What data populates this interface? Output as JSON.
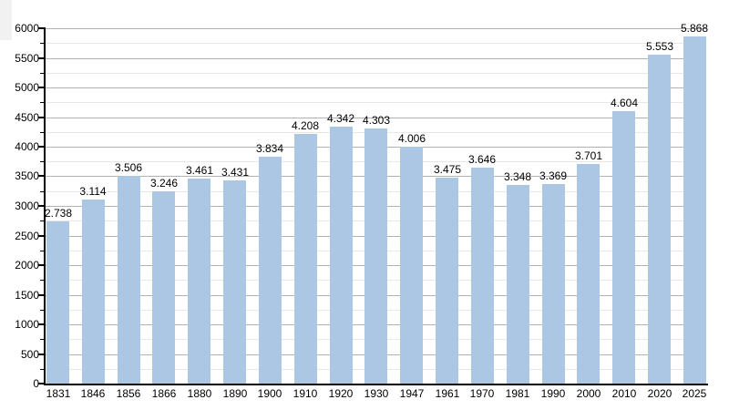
{
  "chart_data": {
    "type": "bar",
    "title": "",
    "xlabel": "",
    "ylabel": "",
    "categories": [
      "1831",
      "1846",
      "1856",
      "1866",
      "1880",
      "1890",
      "1900",
      "1910",
      "1920",
      "1930",
      "1947",
      "1961",
      "1970",
      "1981",
      "1990",
      "2000",
      "2010",
      "2020",
      "2025"
    ],
    "values": [
      2738,
      3114,
      3506,
      3246,
      3461,
      3431,
      3834,
      4208,
      4342,
      4303,
      4006,
      3475,
      3646,
      3348,
      3369,
      3701,
      4604,
      5553,
      5868
    ],
    "value_labels": [
      "2.738",
      "3.114",
      "3.506",
      "3.246",
      "3.461",
      "3.431",
      "3.834",
      "4.208",
      "4.342",
      "4.303",
      "4.006",
      "3.475",
      "3.646",
      "3.348",
      "3.369",
      "3.701",
      "4.604",
      "5.553",
      "5.868"
    ],
    "ylim": [
      0,
      6000
    ],
    "y_major_step": 500,
    "y_minor_step": 250,
    "y_tick_labels": [
      "0",
      "500",
      "1000",
      "1500",
      "2000",
      "2500",
      "3000",
      "3500",
      "4000",
      "4500",
      "5000",
      "5500",
      "6000"
    ],
    "grid": "horizontal major (500) and minor (250) gridlines",
    "legend_position": "none",
    "colors": {
      "bar": "#abc7e3",
      "grid_major": "#b2b2b2",
      "grid_minor": "#e7e7e7",
      "axis": "#000000",
      "text": "#000000",
      "background": "#ffffff",
      "corner_artifact": "#f2f1f2"
    }
  }
}
